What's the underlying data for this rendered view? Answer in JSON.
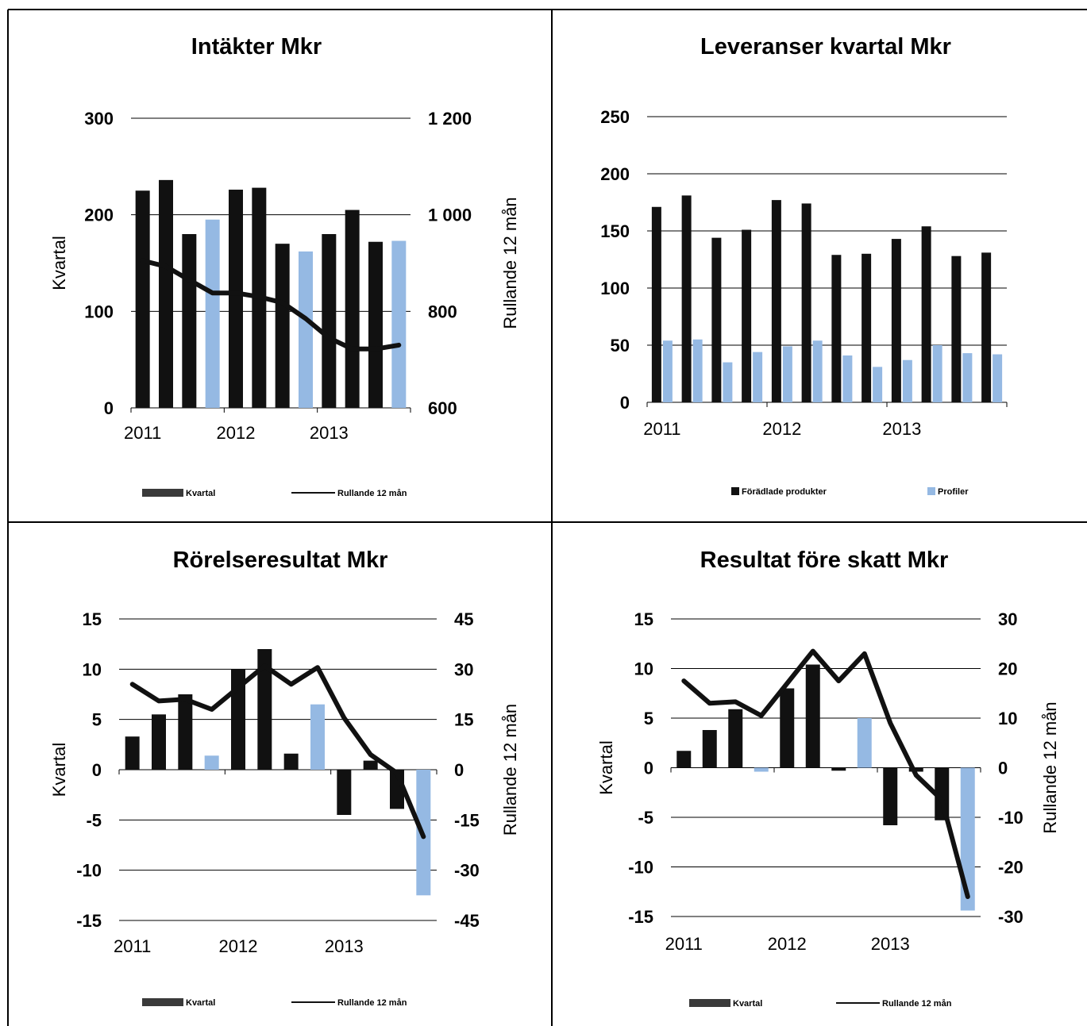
{
  "colors": {
    "dark": "#111111",
    "light": "#95b9e3",
    "legend_dark": "#3a3a3a",
    "grid": "#000000"
  },
  "chart_data": [
    {
      "type": "bar",
      "title": "Intäkter Mkr",
      "ylabel": "Kvartal",
      "y2label": "Rullande 12 mån",
      "ylim": [
        0,
        300
      ],
      "y2lim": [
        600,
        1200
      ],
      "yticks": [
        "0",
        "100",
        "200",
        "300"
      ],
      "y2ticks": [
        "600",
        "800",
        "1 000",
        "1 200"
      ],
      "x_labels": [
        "2011",
        "2012",
        "2013"
      ],
      "x_label_at": [
        0,
        4,
        8
      ],
      "legend": [
        {
          "label": "Kvartal",
          "kind": "box"
        },
        {
          "label": "Rullande 12 mån",
          "kind": "line"
        }
      ],
      "series": [
        {
          "name": "Kvartal",
          "kind": "bar",
          "values": [
            225,
            236,
            180,
            195,
            226,
            228,
            170,
            162,
            180,
            205,
            172,
            173
          ],
          "highlight": [
            3,
            7,
            11
          ]
        },
        {
          "name": "Rullande 12 mån",
          "kind": "line",
          "axis": "y2",
          "values": [
            905,
            893,
            865,
            838,
            838,
            830,
            818,
            785,
            745,
            722,
            722,
            730
          ]
        }
      ]
    },
    {
      "type": "bar",
      "title": "Leveranser kvartal Mkr",
      "ylim": [
        0,
        250
      ],
      "yticks": [
        "0",
        "50",
        "100",
        "150",
        "200",
        "250"
      ],
      "x_labels": [
        "2011",
        "2012",
        "2013"
      ],
      "x_label_at": [
        0,
        4,
        8
      ],
      "legend": [
        {
          "label": "Förädlade produkter",
          "kind": "square"
        },
        {
          "label": "Profiler",
          "kind": "square-light"
        }
      ],
      "series": [
        {
          "name": "Förädlade produkter",
          "kind": "bar",
          "values": [
            171,
            181,
            144,
            151,
            177,
            174,
            129,
            130,
            143,
            154,
            128,
            131
          ]
        },
        {
          "name": "Profiler",
          "kind": "bar",
          "values": [
            54,
            55,
            35,
            44,
            49,
            54,
            41,
            31,
            37,
            50,
            43,
            42
          ]
        }
      ]
    },
    {
      "type": "bar",
      "title": "Rörelseresultat Mkr",
      "ylabel": "Kvartal",
      "y2label": "Rullande 12 mån",
      "ylim": [
        -15,
        15
      ],
      "y2lim": [
        -45,
        45
      ],
      "yticks": [
        "-15",
        "-10",
        "-5",
        "0",
        "5",
        "10",
        "15"
      ],
      "y2ticks": [
        "-45",
        "-30",
        "-15",
        "0",
        "15",
        "30",
        "45"
      ],
      "x_labels": [
        "2011",
        "2012",
        "2013"
      ],
      "x_label_at": [
        0,
        4,
        8
      ],
      "legend": [
        {
          "label": "Kvartal",
          "kind": "box"
        },
        {
          "label": "Rullande 12 mån",
          "kind": "line"
        }
      ],
      "series": [
        {
          "name": "Kvartal",
          "kind": "bar",
          "values": [
            3.3,
            5.5,
            7.5,
            1.4,
            10.0,
            12.0,
            1.6,
            6.5,
            -4.5,
            0.9,
            -3.9,
            -12.5
          ],
          "highlight": [
            3,
            7,
            11
          ]
        },
        {
          "name": "Rullande 12 mån",
          "kind": "line",
          "axis": "y2",
          "values": [
            25.5,
            20.5,
            21,
            18,
            24.5,
            31,
            25.5,
            30.5,
            15.5,
            4.5,
            -1,
            -20
          ]
        }
      ]
    },
    {
      "type": "bar",
      "title": "Resultat före skatt Mkr",
      "ylabel": "Kvartal",
      "y2label": "Rullande 12 mån",
      "ylim": [
        -15,
        15
      ],
      "y2lim": [
        -30,
        30
      ],
      "yticks": [
        "-15",
        "-10",
        "-5",
        "0",
        "5",
        "10",
        "15"
      ],
      "y2ticks": [
        "-30",
        "-20",
        "-10",
        "0",
        "10",
        "20",
        "30"
      ],
      "x_labels": [
        "2011",
        "2012",
        "2013"
      ],
      "x_label_at": [
        0,
        4,
        8
      ],
      "legend": [
        {
          "label": "Kvartal",
          "kind": "box"
        },
        {
          "label": "Rullande 12 mån",
          "kind": "line"
        }
      ],
      "series": [
        {
          "name": "Kvartal",
          "kind": "bar",
          "values": [
            1.7,
            3.8,
            5.9,
            -0.4,
            8.0,
            10.4,
            -0.3,
            5.0,
            -5.8,
            -0.4,
            -5.3,
            -14.4
          ],
          "highlight": [
            3,
            7,
            11
          ]
        },
        {
          "name": "Rullande 12 mån",
          "kind": "line",
          "axis": "y2",
          "values": [
            17.5,
            13,
            13.3,
            10.5,
            17,
            23.5,
            17.5,
            23,
            9,
            -1.5,
            -6.5,
            -26
          ]
        }
      ]
    }
  ]
}
